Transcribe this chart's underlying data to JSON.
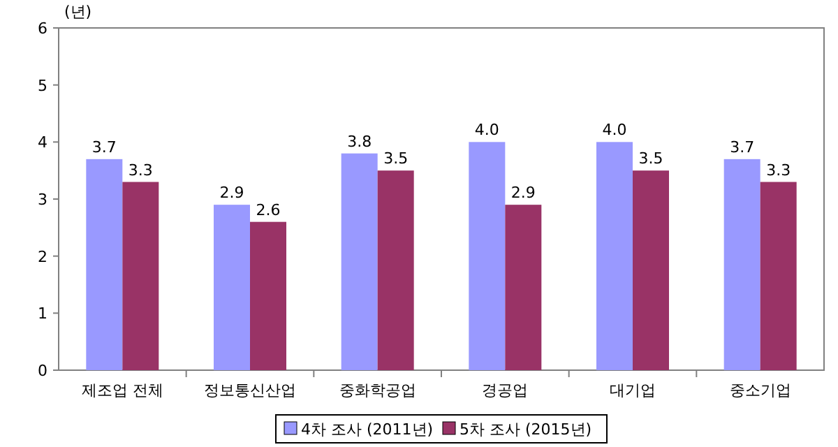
{
  "chart_data": {
    "type": "bar",
    "ylabel": "(년)",
    "categories": [
      "제조업 전체",
      "정보통신산업",
      "중화학공업",
      "경공업",
      "대기업",
      "중소기업"
    ],
    "series": [
      {
        "name": "4차 조사 (2011년)",
        "color": "#9999ff",
        "values": [
          3.7,
          2.9,
          3.8,
          4.0,
          4.0,
          3.7
        ],
        "value_labels": [
          "3.7",
          "2.9",
          "3.8",
          "4.0",
          "4.0",
          "3.7"
        ]
      },
      {
        "name": "5차 조사 (2015년)",
        "color": "#993366",
        "values": [
          3.3,
          2.6,
          3.5,
          2.9,
          3.5,
          3.3
        ],
        "value_labels": [
          "3.3",
          "2.6",
          "3.5",
          "2.9",
          "3.5",
          "3.3"
        ]
      }
    ],
    "ylim": [
      0,
      6
    ],
    "yticks": [
      0,
      1,
      2,
      3,
      4,
      5,
      6
    ],
    "legend": "bottom"
  }
}
